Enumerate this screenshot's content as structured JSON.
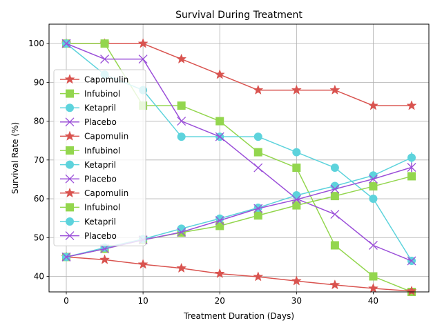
{
  "chart_data": {
    "type": "line",
    "title": "Survival During Treatment",
    "xlabel": "Treatment Duration (Days)",
    "ylabel": "Survival Rate (%)",
    "xlim": [
      -2.25,
      47.25
    ],
    "ylim": [
      36,
      105
    ],
    "xticks": [
      0,
      10,
      20,
      30,
      40
    ],
    "yticks": [
      40,
      50,
      60,
      70,
      80,
      90,
      100
    ],
    "grid": true,
    "legend_position": "upper-left",
    "colors": {
      "Capomulin": "#d9534f",
      "Infubinol": "#93d64e",
      "Ketapril": "#5dd3dc",
      "Placebo": "#9b4fd9"
    },
    "markers": {
      "Capomulin": "star",
      "Infubinol": "square",
      "Ketapril": "circle",
      "Placebo": "x"
    },
    "legend": [
      "Capomulin",
      "Infubinol",
      "Ketapril",
      "Placebo",
      "Capomulin",
      "Infubinol",
      "Ketapril",
      "Placebo",
      "Capomulin",
      "Infubinol",
      "Ketapril",
      "Placebo"
    ],
    "x": [
      0,
      5,
      10,
      15,
      20,
      25,
      30,
      35,
      40,
      45
    ],
    "series": [
      {
        "name": "Capomulin",
        "group": "survival",
        "values": [
          100,
          100,
          100,
          96,
          92,
          88,
          88,
          88,
          84,
          84
        ]
      },
      {
        "name": "Infubinol",
        "group": "survival",
        "values": [
          100,
          100,
          84,
          84,
          80,
          72,
          68,
          48,
          40,
          36
        ]
      },
      {
        "name": "Ketapril",
        "group": "survival",
        "values": [
          100,
          92,
          88,
          76,
          76,
          76,
          72,
          68,
          60,
          44
        ]
      },
      {
        "name": "Placebo",
        "group": "survival",
        "values": [
          100,
          96,
          96,
          80,
          76,
          68,
          60,
          56,
          48,
          44
        ]
      },
      {
        "name": "Capomulin",
        "group": "mean",
        "values": [
          45.0,
          44.3,
          43.1,
          42.1,
          40.7,
          39.9,
          38.8,
          37.8,
          36.9,
          36.2
        ]
      },
      {
        "name": "Infubinol",
        "group": "mean",
        "values": [
          45.0,
          47.1,
          49.4,
          51.3,
          53.0,
          55.7,
          58.3,
          60.7,
          63.2,
          65.8
        ]
      },
      {
        "name": "Ketapril",
        "group": "mean",
        "values": [
          45.0,
          47.4,
          49.6,
          52.3,
          54.9,
          57.7,
          60.9,
          63.3,
          66.0,
          70.6
        ]
      },
      {
        "name": "Placebo",
        "group": "mean",
        "values": [
          45.0,
          47.1,
          49.4,
          51.4,
          54.4,
          57.5,
          59.8,
          62.5,
          65.1,
          68.1
        ]
      }
    ],
    "error_bars": {
      "at_x": 45,
      "Ketapril": 1.4,
      "Placebo": 1.2
    }
  }
}
